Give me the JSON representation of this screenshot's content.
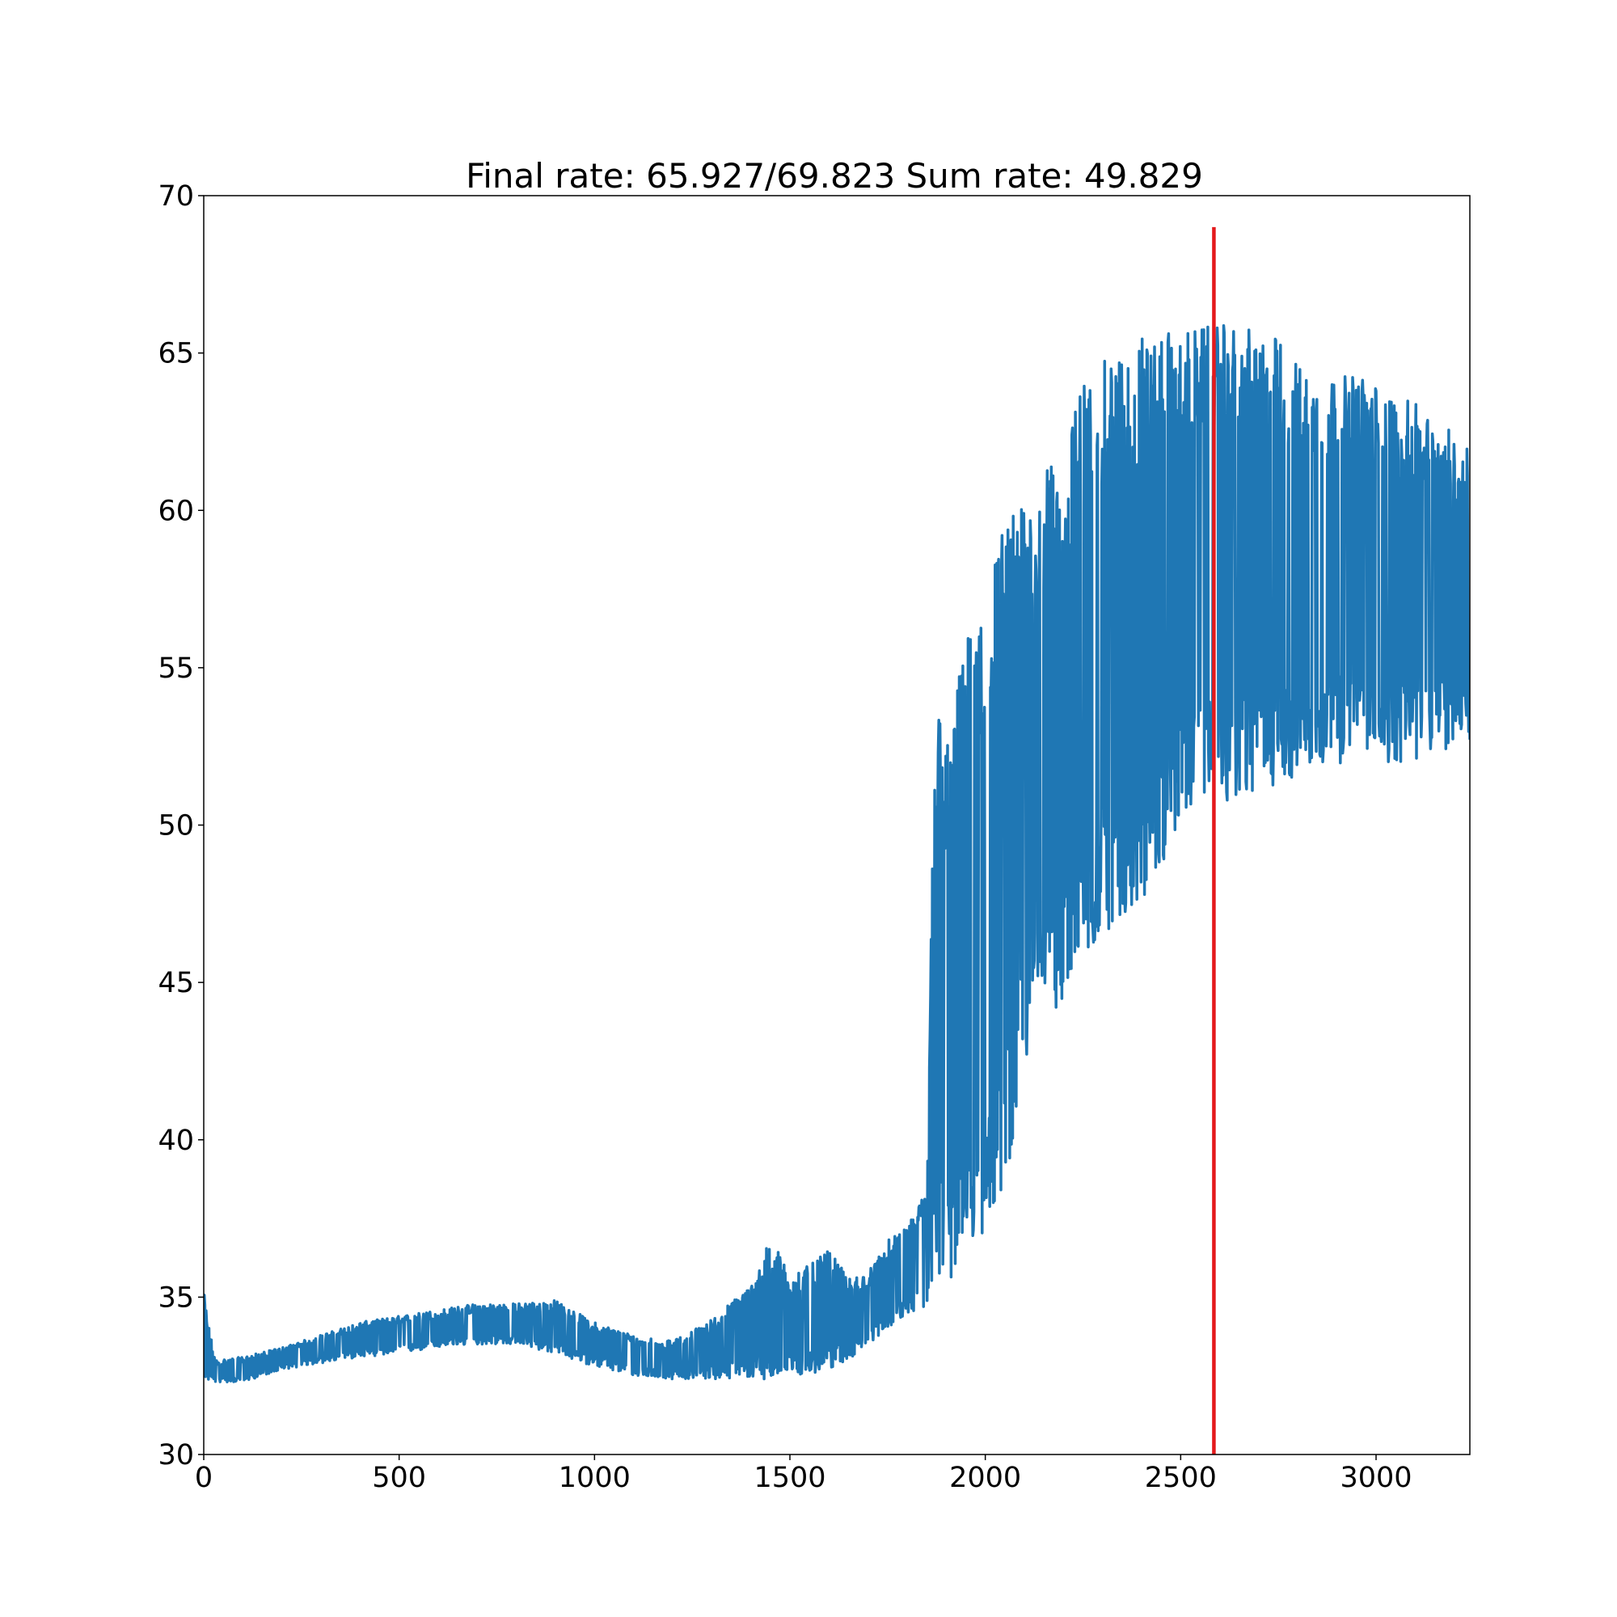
{
  "chart_data": {
    "type": "line",
    "title": "Final rate: 65.927/69.823  Sum rate: 49.829",
    "xlabel": "",
    "ylabel": "",
    "xlim": [
      0,
      3240
    ],
    "ylim": [
      30,
      70
    ],
    "x_ticks": [
      "0",
      "500",
      "1000",
      "1500",
      "2000",
      "2500",
      "3000"
    ],
    "y_ticks": [
      "30",
      "35",
      "40",
      "45",
      "50",
      "55",
      "60",
      "65",
      "70"
    ],
    "grid": false,
    "legend": "none",
    "colors": {
      "series": "#1f77b4",
      "marker_line": "#e41a1c",
      "axes": "#000000"
    },
    "series": [
      {
        "style": "noisy line, upper/lower envelope of oscillating values",
        "envelope_x": [
          0,
          10,
          30,
          100,
          200,
          300,
          400,
          500,
          600,
          700,
          800,
          900,
          1000,
          1100,
          1200,
          1300,
          1400,
          1450,
          1500,
          1550,
          1600,
          1650,
          1700,
          1750,
          1800,
          1850,
          1870,
          1900,
          1950,
          2000,
          2050,
          2100,
          2150,
          2200,
          2250,
          2300,
          2350,
          2400,
          2450,
          2500,
          2550,
          2600,
          2650,
          2700,
          2750,
          2800,
          2850,
          2900,
          2950,
          3000,
          3050,
          3100,
          3150,
          3200,
          3240
        ],
        "upper": [
          35.2,
          34.3,
          33.0,
          33.1,
          33.4,
          33.8,
          34.2,
          34.4,
          34.6,
          34.8,
          34.8,
          34.9,
          34.2,
          33.8,
          33.6,
          34.3,
          35.4,
          36.9,
          35.8,
          36.0,
          36.5,
          35.6,
          35.8,
          36.8,
          37.2,
          38.5,
          54.4,
          52.7,
          55.9,
          57.6,
          59.8,
          60.2,
          61.3,
          61.6,
          64.3,
          64.7,
          65.2,
          65.6,
          65.6,
          65.7,
          65.8,
          65.9,
          65.8,
          65.7,
          65.5,
          64.7,
          64.4,
          64.2,
          64.4,
          64.0,
          63.6,
          63.4,
          62.8,
          62.5,
          62.4
        ],
        "lower": [
          32.5,
          32.3,
          32.3,
          32.3,
          32.7,
          32.9,
          33.1,
          33.2,
          33.4,
          33.5,
          33.5,
          33.2,
          32.8,
          32.5,
          32.4,
          32.4,
          32.4,
          32.4,
          32.4,
          32.5,
          32.7,
          33.0,
          33.5,
          34.0,
          34.5,
          34.6,
          35.0,
          35.4,
          36.0,
          37.0,
          38.5,
          42.0,
          44.5,
          44.0,
          45.5,
          46.5,
          47.0,
          47.5,
          48.5,
          50.0,
          51.0,
          50.8,
          50.7,
          51.0,
          51.3,
          51.5,
          51.8,
          52.0,
          51.8,
          52.0,
          51.9,
          52.0,
          52.2,
          52.5,
          52.3
        ]
      }
    ],
    "vertical_line": {
      "x": 2585,
      "y_range": [
        30,
        69.0
      ]
    }
  }
}
